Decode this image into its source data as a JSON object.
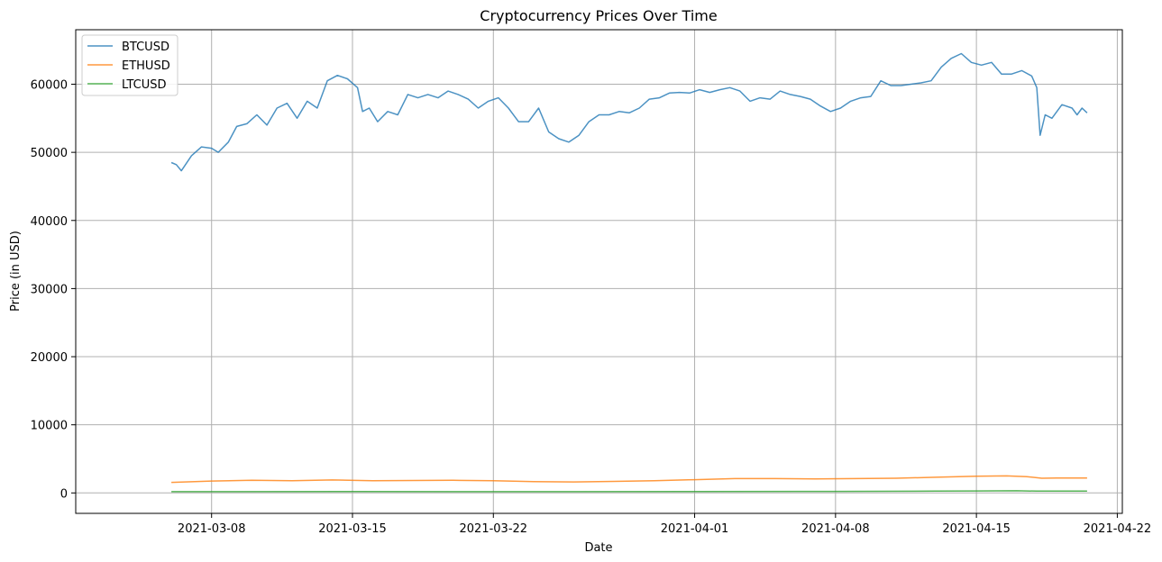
{
  "chart_data": {
    "type": "line",
    "title": "Cryptocurrency Prices Over Time",
    "xlabel": "Date",
    "ylabel": "Price (in USD)",
    "xlim": [
      "2021-03-01T06:00",
      "2021-04-22T06:00"
    ],
    "ylim": [
      -3000,
      68000
    ],
    "grid": true,
    "legend_position": "top-left",
    "xticks": [
      "2021-03-08",
      "2021-03-15",
      "2021-03-22",
      "2021-04-01",
      "2021-04-08",
      "2021-04-15",
      "2021-04-22"
    ],
    "yticks": [
      0,
      10000,
      20000,
      30000,
      40000,
      50000,
      60000
    ],
    "series": [
      {
        "name": "BTCUSD",
        "color": "#1f77b4",
        "points": [
          [
            "2021-03-06T00:00",
            48500
          ],
          [
            "2021-03-06T06:00",
            48200
          ],
          [
            "2021-03-06T12:00",
            47300
          ],
          [
            "2021-03-07T00:00",
            49500
          ],
          [
            "2021-03-07T12:00",
            50800
          ],
          [
            "2021-03-08T00:00",
            50600
          ],
          [
            "2021-03-08T08:00",
            50000
          ],
          [
            "2021-03-08T20:00",
            51500
          ],
          [
            "2021-03-09T06:00",
            53800
          ],
          [
            "2021-03-09T18:00",
            54200
          ],
          [
            "2021-03-10T06:00",
            55500
          ],
          [
            "2021-03-10T18:00",
            54000
          ],
          [
            "2021-03-11T06:00",
            56500
          ],
          [
            "2021-03-11T18:00",
            57200
          ],
          [
            "2021-03-12T06:00",
            55000
          ],
          [
            "2021-03-12T18:00",
            57500
          ],
          [
            "2021-03-13T06:00",
            56500
          ],
          [
            "2021-03-13T18:00",
            60500
          ],
          [
            "2021-03-14T06:00",
            61300
          ],
          [
            "2021-03-14T18:00",
            60800
          ],
          [
            "2021-03-15T06:00",
            59500
          ],
          [
            "2021-03-15T12:00",
            56000
          ],
          [
            "2021-03-15T20:00",
            56500
          ],
          [
            "2021-03-16T06:00",
            54500
          ],
          [
            "2021-03-16T18:00",
            56000
          ],
          [
            "2021-03-17T06:00",
            55500
          ],
          [
            "2021-03-17T18:00",
            58500
          ],
          [
            "2021-03-18T06:00",
            58000
          ],
          [
            "2021-03-18T18:00",
            58500
          ],
          [
            "2021-03-19T06:00",
            58000
          ],
          [
            "2021-03-19T18:00",
            59000
          ],
          [
            "2021-03-20T06:00",
            58500
          ],
          [
            "2021-03-20T18:00",
            57800
          ],
          [
            "2021-03-21T06:00",
            56500
          ],
          [
            "2021-03-21T18:00",
            57500
          ],
          [
            "2021-03-22T06:00",
            58000
          ],
          [
            "2021-03-22T18:00",
            56500
          ],
          [
            "2021-03-23T06:00",
            54500
          ],
          [
            "2021-03-23T18:00",
            54500
          ],
          [
            "2021-03-24T06:00",
            56500
          ],
          [
            "2021-03-24T18:00",
            53000
          ],
          [
            "2021-03-25T06:00",
            52000
          ],
          [
            "2021-03-25T18:00",
            51500
          ],
          [
            "2021-03-26T06:00",
            52500
          ],
          [
            "2021-03-26T18:00",
            54500
          ],
          [
            "2021-03-27T06:00",
            55500
          ],
          [
            "2021-03-27T18:00",
            55500
          ],
          [
            "2021-03-28T06:00",
            56000
          ],
          [
            "2021-03-28T18:00",
            55800
          ],
          [
            "2021-03-29T06:00",
            56500
          ],
          [
            "2021-03-29T18:00",
            57800
          ],
          [
            "2021-03-30T06:00",
            58000
          ],
          [
            "2021-03-30T18:00",
            58700
          ],
          [
            "2021-03-31T06:00",
            58800
          ],
          [
            "2021-03-31T18:00",
            58700
          ],
          [
            "2021-04-01T06:00",
            59200
          ],
          [
            "2021-04-01T18:00",
            58800
          ],
          [
            "2021-04-02T06:00",
            59200
          ],
          [
            "2021-04-02T18:00",
            59500
          ],
          [
            "2021-04-03T06:00",
            59000
          ],
          [
            "2021-04-03T18:00",
            57500
          ],
          [
            "2021-04-04T06:00",
            58000
          ],
          [
            "2021-04-04T18:00",
            57800
          ],
          [
            "2021-04-05T06:00",
            59000
          ],
          [
            "2021-04-05T18:00",
            58500
          ],
          [
            "2021-04-06T06:00",
            58200
          ],
          [
            "2021-04-06T18:00",
            57800
          ],
          [
            "2021-04-07T06:00",
            56800
          ],
          [
            "2021-04-07T18:00",
            56000
          ],
          [
            "2021-04-08T06:00",
            56500
          ],
          [
            "2021-04-08T18:00",
            57500
          ],
          [
            "2021-04-09T06:00",
            58000
          ],
          [
            "2021-04-09T18:00",
            58200
          ],
          [
            "2021-04-10T06:00",
            60500
          ],
          [
            "2021-04-10T18:00",
            59800
          ],
          [
            "2021-04-11T06:00",
            59800
          ],
          [
            "2021-04-11T18:00",
            60000
          ],
          [
            "2021-04-12T06:00",
            60200
          ],
          [
            "2021-04-12T18:00",
            60500
          ],
          [
            "2021-04-13T06:00",
            62500
          ],
          [
            "2021-04-13T18:00",
            63800
          ],
          [
            "2021-04-14T06:00",
            64500
          ],
          [
            "2021-04-14T18:00",
            63200
          ],
          [
            "2021-04-15T06:00",
            62800
          ],
          [
            "2021-04-15T18:00",
            63200
          ],
          [
            "2021-04-16T06:00",
            61500
          ],
          [
            "2021-04-16T18:00",
            61500
          ],
          [
            "2021-04-17T06:00",
            62000
          ],
          [
            "2021-04-17T18:00",
            61200
          ],
          [
            "2021-04-18T00:00",
            59500
          ],
          [
            "2021-04-18T04:00",
            52500
          ],
          [
            "2021-04-18T10:00",
            55500
          ],
          [
            "2021-04-18T18:00",
            55000
          ],
          [
            "2021-04-19T06:00",
            57000
          ],
          [
            "2021-04-19T18:00",
            56500
          ],
          [
            "2021-04-20T00:00",
            55500
          ],
          [
            "2021-04-20T06:00",
            56500
          ],
          [
            "2021-04-20T12:00",
            55800
          ]
        ]
      },
      {
        "name": "ETHUSD",
        "color": "#ff7f0e",
        "points": [
          [
            "2021-03-06T00:00",
            1550
          ],
          [
            "2021-03-08T00:00",
            1750
          ],
          [
            "2021-03-10T00:00",
            1850
          ],
          [
            "2021-03-12T00:00",
            1800
          ],
          [
            "2021-03-14T00:00",
            1900
          ],
          [
            "2021-03-16T00:00",
            1800
          ],
          [
            "2021-03-18T00:00",
            1820
          ],
          [
            "2021-03-20T00:00",
            1850
          ],
          [
            "2021-03-22T00:00",
            1780
          ],
          [
            "2021-03-24T00:00",
            1650
          ],
          [
            "2021-03-26T00:00",
            1620
          ],
          [
            "2021-03-28T00:00",
            1700
          ],
          [
            "2021-03-30T00:00",
            1800
          ],
          [
            "2021-04-01T00:00",
            1950
          ],
          [
            "2021-04-03T00:00",
            2100
          ],
          [
            "2021-04-05T00:00",
            2100
          ],
          [
            "2021-04-07T00:00",
            2050
          ],
          [
            "2021-04-09T00:00",
            2100
          ],
          [
            "2021-04-11T00:00",
            2150
          ],
          [
            "2021-04-13T00:00",
            2300
          ],
          [
            "2021-04-15T00:00",
            2450
          ],
          [
            "2021-04-16T12:00",
            2500
          ],
          [
            "2021-04-17T12:00",
            2400
          ],
          [
            "2021-04-18T06:00",
            2150
          ],
          [
            "2021-04-19T00:00",
            2200
          ],
          [
            "2021-04-20T12:00",
            2200
          ]
        ]
      },
      {
        "name": "LTCUSD",
        "color": "#2ca02c",
        "points": [
          [
            "2021-03-06T00:00",
            180
          ],
          [
            "2021-03-15T00:00",
            200
          ],
          [
            "2021-03-25T00:00",
            180
          ],
          [
            "2021-04-01T00:00",
            200
          ],
          [
            "2021-04-08T00:00",
            220
          ],
          [
            "2021-04-13T00:00",
            260
          ],
          [
            "2021-04-15T00:00",
            290
          ],
          [
            "2021-04-17T00:00",
            320
          ],
          [
            "2021-04-18T00:00",
            270
          ],
          [
            "2021-04-20T12:00",
            260
          ]
        ]
      }
    ]
  }
}
